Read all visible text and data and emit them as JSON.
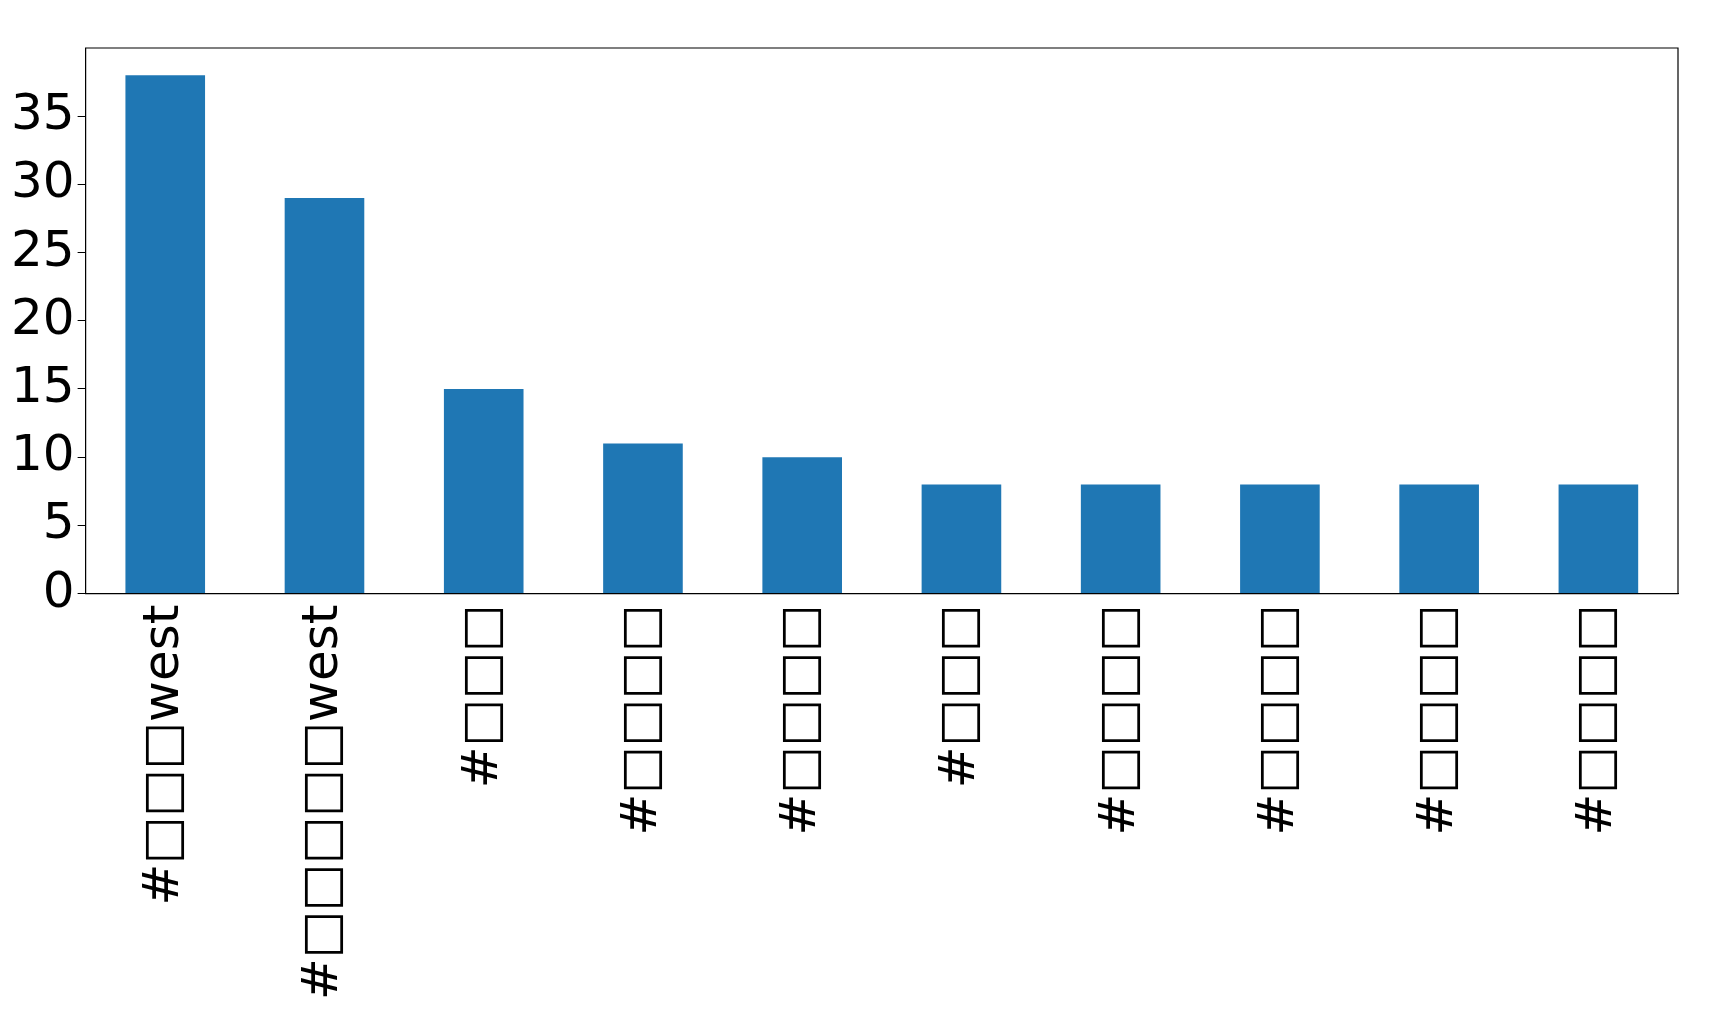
{
  "chart_data": {
    "type": "bar",
    "categories": [
      "#□□□west",
      "#□□□□□west",
      "#□□□",
      "#□□□□",
      "#□□□□",
      "#□□□",
      "#□□□□",
      "#□□□□",
      "#□□□□",
      "#□□□□"
    ],
    "values": [
      38,
      29,
      15,
      11,
      10,
      8,
      8,
      8,
      8,
      8
    ],
    "color": "#1f77b4",
    "ylim": [
      0,
      40
    ],
    "yticks": [
      0,
      5,
      10,
      15,
      20,
      25,
      30,
      35
    ],
    "grid": false,
    "legend": false
  }
}
